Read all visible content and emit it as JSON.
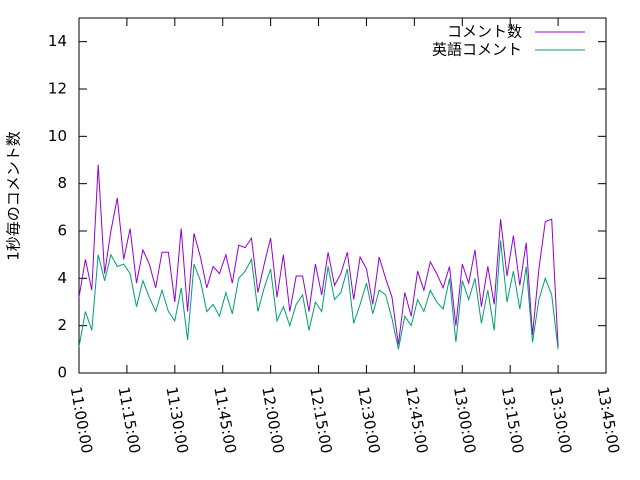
{
  "chart_data": {
    "type": "line",
    "ylabel": "1秒毎のコメント数",
    "x": [
      "11:00:00",
      "11:02:00",
      "11:04:00",
      "11:06:00",
      "11:08:00",
      "11:10:00",
      "11:12:00",
      "11:14:00",
      "11:16:00",
      "11:18:00",
      "11:20:00",
      "11:22:00",
      "11:24:00",
      "11:26:00",
      "11:28:00",
      "11:30:00",
      "11:32:00",
      "11:34:00",
      "11:36:00",
      "11:38:00",
      "11:40:00",
      "11:42:00",
      "11:44:00",
      "11:46:00",
      "11:48:00",
      "11:50:00",
      "11:52:00",
      "11:54:00",
      "11:56:00",
      "11:58:00",
      "12:00:00",
      "12:02:00",
      "12:04:00",
      "12:06:00",
      "12:08:00",
      "12:10:00",
      "12:12:00",
      "12:14:00",
      "12:16:00",
      "12:18:00",
      "12:20:00",
      "12:22:00",
      "12:24:00",
      "12:26:00",
      "12:28:00",
      "12:30:00",
      "12:32:00",
      "12:34:00",
      "12:36:00",
      "12:38:00",
      "12:40:00",
      "12:42:00",
      "12:44:00",
      "12:46:00",
      "12:48:00",
      "12:50:00",
      "12:52:00",
      "12:54:00",
      "12:56:00",
      "12:58:00",
      "13:00:00",
      "13:02:00",
      "13:04:00",
      "13:06:00",
      "13:08:00",
      "13:10:00",
      "13:12:00",
      "13:14:00",
      "13:16:00",
      "13:18:00",
      "13:20:00",
      "13:22:00",
      "13:24:00",
      "13:26:00",
      "13:28:00",
      "13:30:00"
    ],
    "series": [
      {
        "name": "コメント数",
        "color": "#9400d3",
        "values": [
          3.2,
          4.8,
          3.5,
          8.8,
          4.2,
          6.0,
          7.4,
          4.8,
          6.1,
          3.8,
          5.2,
          4.6,
          3.6,
          5.1,
          5.1,
          3.0,
          6.1,
          2.6,
          5.9,
          4.9,
          3.6,
          4.5,
          4.2,
          5.0,
          3.8,
          5.4,
          5.3,
          5.7,
          3.4,
          4.6,
          5.7,
          3.2,
          5.0,
          2.6,
          4.1,
          4.1,
          2.6,
          4.6,
          3.3,
          5.1,
          3.7,
          4.2,
          5.1,
          3.1,
          4.9,
          4.4,
          2.9,
          4.9,
          4.0,
          3.2,
          1.2,
          3.4,
          2.4,
          4.3,
          3.5,
          4.7,
          4.2,
          3.6,
          4.5,
          2.0,
          4.6,
          3.8,
          5.2,
          2.8,
          4.5,
          2.9,
          6.5,
          4.1,
          5.8,
          3.7,
          5.5,
          1.6,
          4.4,
          6.4,
          6.5,
          1.1
        ]
      },
      {
        "name": "英語コメント",
        "color": "#009e73",
        "values": [
          1.1,
          2.6,
          1.8,
          5.0,
          3.9,
          5.0,
          4.5,
          4.6,
          4.2,
          2.8,
          3.9,
          3.2,
          2.6,
          3.5,
          2.6,
          2.2,
          3.6,
          1.4,
          4.6,
          3.9,
          2.6,
          2.9,
          2.4,
          3.4,
          2.5,
          4.0,
          4.3,
          4.8,
          2.6,
          3.6,
          4.4,
          2.2,
          2.8,
          2.0,
          2.9,
          3.3,
          1.8,
          3.0,
          2.6,
          4.5,
          3.1,
          3.4,
          4.4,
          2.1,
          2.9,
          3.8,
          2.5,
          3.5,
          3.3,
          2.3,
          1.0,
          2.4,
          2.0,
          3.1,
          2.6,
          3.5,
          3.0,
          2.7,
          4.0,
          1.3,
          3.9,
          3.1,
          4.0,
          2.1,
          3.5,
          1.8,
          5.6,
          3.0,
          4.3,
          2.7,
          4.5,
          1.3,
          3.1,
          4.0,
          3.3,
          1.0
        ]
      }
    ],
    "xlim": [
      "11:00:00",
      "13:45:00"
    ],
    "xticks": [
      "11:00:00",
      "11:15:00",
      "11:30:00",
      "11:45:00",
      "12:00:00",
      "12:15:00",
      "12:30:00",
      "12:45:00",
      "13:00:00",
      "13:15:00",
      "13:30:00",
      "13:45:00"
    ],
    "ylim": [
      0,
      15
    ],
    "yticks": [
      0,
      2,
      4,
      6,
      8,
      10,
      12,
      14
    ],
    "legend": "top-right"
  }
}
